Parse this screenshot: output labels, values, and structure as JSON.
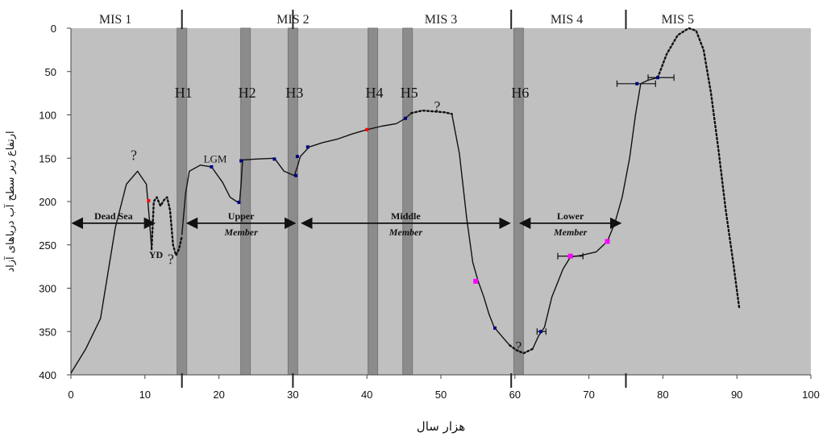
{
  "chart_data": {
    "type": "line",
    "xlabel": "هزار سال",
    "ylabel": "ارتفاع زیر سطح آب دریاهای آزاد",
    "xlim": [
      0,
      100
    ],
    "ylim": [
      0,
      400
    ],
    "y_inverted": true,
    "x_ticks": [
      0,
      10,
      20,
      30,
      40,
      50,
      60,
      70,
      80,
      90,
      100
    ],
    "y_ticks": [
      0,
      50,
      100,
      150,
      200,
      250,
      300,
      350,
      400
    ],
    "plot_background": "#c0c0c0",
    "curve_color": "#111111",
    "mis_stages": [
      {
        "label": "MIS 1",
        "x": 6
      },
      {
        "label": "MIS 2",
        "x": 30
      },
      {
        "label": "MIS 3",
        "x": 50
      },
      {
        "label": "MIS 4",
        "x": 67
      },
      {
        "label": "MIS 5",
        "x": 82
      }
    ],
    "mis_boundaries": [
      15,
      30,
      59.5,
      75
    ],
    "heinrich_events": [
      {
        "label": "H1",
        "x": 15
      },
      {
        "label": "H2",
        "x": 23.6
      },
      {
        "label": "H3",
        "x": 30
      },
      {
        "label": "H4",
        "x": 40.8
      },
      {
        "label": "H5",
        "x": 45.5
      },
      {
        "label": "H6",
        "x": 60.5
      }
    ],
    "members": [
      {
        "label": "Dead Sea",
        "x_from": 0,
        "x_to": 11.5,
        "y": 225
      },
      {
        "label": "Upper\nMember",
        "x_from": 15.5,
        "x_to": 30.5,
        "y": 225
      },
      {
        "label": "Middle\nMember",
        "x_from": 31,
        "x_to": 59.5,
        "y": 225
      },
      {
        "label": "Lower\nMember",
        "x_from": 60.5,
        "x_to": 74.5,
        "y": 225
      }
    ],
    "annotations": [
      {
        "text": "LGM",
        "x": 19.5,
        "y": 155
      },
      {
        "text": "YD",
        "x": 11.5,
        "y": 265
      },
      {
        "text": "?",
        "x": 8.5,
        "y": 152
      },
      {
        "text": "?",
        "x": 13.5,
        "y": 272
      },
      {
        "text": "?",
        "x": 49.5,
        "y": 96
      },
      {
        "text": "?",
        "x": 60.5,
        "y": 373
      }
    ],
    "series": [
      {
        "style": "solid",
        "x": [
          0,
          2,
          4,
          6,
          7.5,
          9,
          10.2,
          10.6,
          10.9
        ],
        "y": [
          398,
          370,
          335,
          230,
          180,
          165,
          180,
          220,
          255
        ]
      },
      {
        "style": "dotted",
        "x": [
          10.9,
          11.2,
          11.6,
          12.1,
          12.6,
          13.0,
          13.4,
          13.8,
          14.2,
          14.6,
          15.0
        ],
        "y": [
          255,
          200,
          195,
          205,
          198,
          195,
          210,
          250,
          262,
          255,
          240
        ]
      },
      {
        "style": "solid",
        "x": [
          15,
          15.5,
          16,
          17.5,
          19,
          20.5,
          21.5,
          22.4,
          22.8,
          23,
          23.2,
          25,
          27.5,
          28.8,
          30.2,
          30.6,
          31,
          32.2,
          34,
          36,
          38,
          40,
          42,
          44,
          45.2,
          46
        ],
        "y": [
          238,
          190,
          165,
          158,
          160,
          178,
          195,
          200,
          200,
          180,
          152,
          151,
          150,
          165,
          170,
          160,
          148,
          137,
          132,
          128,
          122,
          117,
          113,
          110,
          104,
          98
        ]
      },
      {
        "style": "dotted",
        "x": [
          46,
          47.5,
          49,
          50.5,
          51.5
        ],
        "y": [
          98,
          95,
          96,
          97,
          99
        ]
      },
      {
        "style": "solid",
        "x": [
          51.5,
          52.5,
          53.5,
          54.3,
          55,
          55.8,
          56.5,
          57.2,
          58.5,
          59.3
        ],
        "y": [
          100,
          145,
          220,
          270,
          291,
          310,
          330,
          345,
          358,
          366
        ]
      },
      {
        "style": "dotted",
        "x": [
          59.3,
          60.3,
          61.2,
          62.4
        ],
        "y": [
          366,
          372,
          375,
          370
        ]
      },
      {
        "style": "solid",
        "x": [
          62.4,
          63.2,
          64,
          65,
          66.5,
          67.5,
          69,
          71,
          72.5,
          73.5,
          74.5,
          75.5,
          76.3,
          77,
          78,
          79.3
        ],
        "y": [
          370,
          355,
          345,
          310,
          278,
          264,
          262,
          258,
          246,
          225,
          195,
          150,
          100,
          64,
          60,
          57
        ]
      },
      {
        "style": "dotted",
        "x": [
          79.3,
          80.5,
          82,
          83.5,
          84.5,
          85.5,
          86.5,
          87.5,
          88.5,
          89.5,
          90.3
        ],
        "y": [
          57,
          30,
          8,
          0,
          3,
          25,
          75,
          140,
          210,
          270,
          322
        ]
      }
    ],
    "markers": [
      {
        "x": 10.5,
        "y": 199,
        "color": "#ff0000",
        "size": 4
      },
      {
        "x": 19,
        "y": 160,
        "color": "#000080",
        "size": 4
      },
      {
        "x": 22.7,
        "y": 201,
        "color": "#000080",
        "size": 4
      },
      {
        "x": 23,
        "y": 153,
        "color": "#000080",
        "size": 4
      },
      {
        "x": 27.5,
        "y": 151,
        "color": "#000080",
        "size": 4
      },
      {
        "x": 30.4,
        "y": 170,
        "color": "#000080",
        "size": 4
      },
      {
        "x": 30.6,
        "y": 148,
        "color": "#000080",
        "size": 4
      },
      {
        "x": 32,
        "y": 137,
        "color": "#000080",
        "size": 4
      },
      {
        "x": 40,
        "y": 117,
        "color": "#ff0000",
        "size": 4
      },
      {
        "x": 45.2,
        "y": 104,
        "color": "#000080",
        "size": 4
      },
      {
        "x": 54.7,
        "y": 292,
        "color": "#ff00ff",
        "size": 6
      },
      {
        "x": 57.3,
        "y": 346,
        "color": "#000080",
        "size": 4
      },
      {
        "x": 63.5,
        "y": 350,
        "color": "#000080",
        "size": 4
      },
      {
        "x": 67.5,
        "y": 263,
        "color": "#ff00ff",
        "size": 6
      },
      {
        "x": 72.5,
        "y": 246,
        "color": "#ff00ff",
        "size": 6
      },
      {
        "x": 76.5,
        "y": 64,
        "color": "#000080",
        "size": 4
      },
      {
        "x": 79.3,
        "y": 57,
        "color": "#000080",
        "size": 4
      }
    ],
    "error_bars": [
      {
        "x": 63.5,
        "y": 350,
        "x_from": 63,
        "x_to": 64.2
      },
      {
        "x": 67.5,
        "y": 263,
        "x_from": 65.8,
        "x_to": 69.2
      },
      {
        "x": 76.5,
        "y": 64,
        "x_from": 73.8,
        "x_to": 79
      },
      {
        "x": 79.3,
        "y": 57,
        "x_from": 78,
        "x_to": 81.5
      }
    ]
  }
}
